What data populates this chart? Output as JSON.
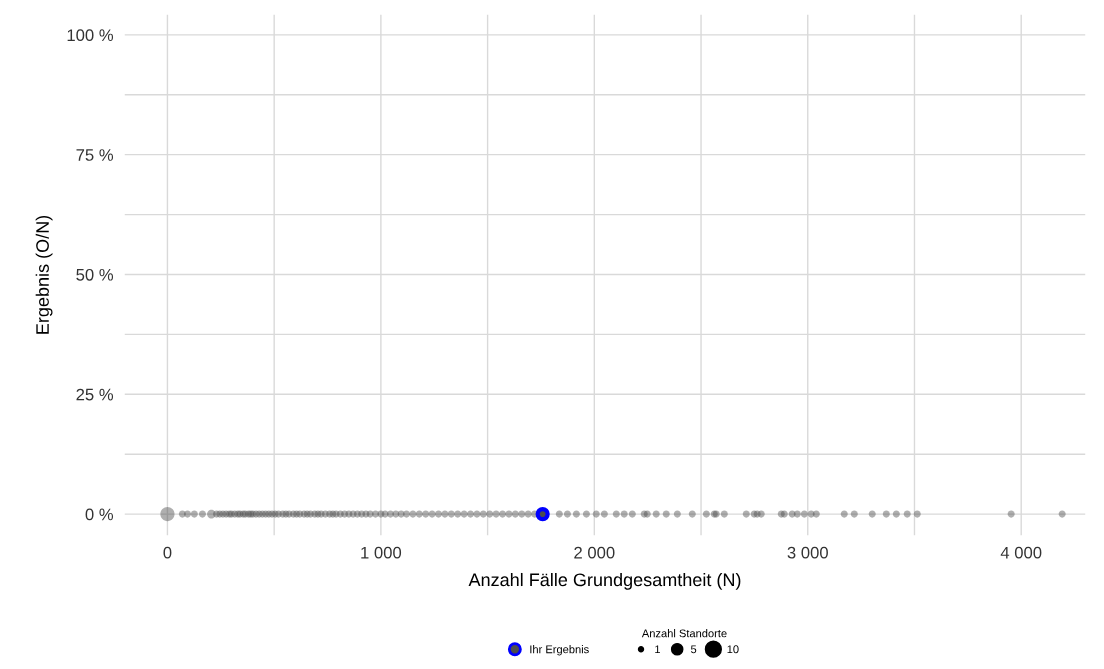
{
  "chart_data": {
    "type": "bubble",
    "xlabel": "Anzahl Fälle Grundgesamtheit (N)",
    "ylabel": "Ergebnis (O/N)",
    "legend_title": "Anzahl Standorte",
    "xlim": [
      -200,
      4300
    ],
    "ylim": [
      -4.4,
      104.2
    ],
    "xticks": [
      {
        "value": 0,
        "label": "0"
      },
      {
        "value": 500,
        "label": null
      },
      {
        "value": 1000,
        "label": "1 000"
      },
      {
        "value": 1500,
        "label": null
      },
      {
        "value": 2000,
        "label": "2 000"
      },
      {
        "value": 2500,
        "label": null
      },
      {
        "value": 3000,
        "label": "3 000"
      },
      {
        "value": 3500,
        "label": null
      },
      {
        "value": 4000,
        "label": "4 000"
      }
    ],
    "yticks": [
      {
        "value": 0,
        "label": "0 %"
      },
      {
        "value": 12.5,
        "label": null
      },
      {
        "value": 25,
        "label": "25 %"
      },
      {
        "value": 37.5,
        "label": null
      },
      {
        "value": 50,
        "label": "50 %"
      },
      {
        "value": 62.5,
        "label": null
      },
      {
        "value": 75,
        "label": "75 %"
      },
      {
        "value": 87.5,
        "label": null
      },
      {
        "value": 100,
        "label": "100 %"
      }
    ],
    "grid": true,
    "legend": "bottom",
    "size_legend": [
      1,
      5,
      10
    ],
    "series": [
      {
        "color": "#4d4d4d",
        "x": [
          0,
          70,
          94,
          126,
          164,
          206,
          230,
          245,
          260,
          275,
          290,
          300,
          315,
          330,
          340,
          355,
          365,
          380,
          390,
          400,
          415,
          430,
          445,
          460,
          475,
          490,
          505,
          520,
          540,
          555,
          570,
          590,
          605,
          620,
          640,
          655,
          670,
          690,
          705,
          720,
          740,
          760,
          775,
          790,
          810,
          830,
          850,
          870,
          890,
          910,
          930,
          950,
          975,
          1000,
          1020,
          1045,
          1070,
          1095,
          1120,
          1150,
          1180,
          1210,
          1240,
          1270,
          1300,
          1330,
          1360,
          1390,
          1420,
          1450,
          1480,
          1510,
          1540,
          1570,
          1600,
          1630,
          1660,
          1690,
          1720,
          1836,
          1874,
          1916,
          1963,
          2009,
          2047,
          2103,
          2140,
          2178,
          2234,
          2248,
          2290,
          2337,
          2389,
          2459,
          2525,
          2562,
          2571,
          2609,
          2712,
          2749,
          2763,
          2782,
          2876,
          2890,
          2927,
          2951,
          2984,
          3016,
          3040,
          3171,
          3218,
          3302,
          3368,
          3415,
          3466,
          3513,
          3953,
          4192
        ],
        "values": [
          0,
          0,
          0,
          0,
          0,
          0,
          0,
          0,
          0,
          0,
          0,
          0,
          0,
          0,
          0,
          0,
          0,
          0,
          0,
          0,
          0,
          0,
          0,
          0,
          0,
          0,
          0,
          0,
          0,
          0,
          0,
          0,
          0,
          0,
          0,
          0,
          0,
          0,
          0,
          0,
          0,
          0,
          0,
          0,
          0,
          0,
          0,
          0,
          0,
          0,
          0,
          0,
          0,
          0,
          0,
          0,
          0,
          0,
          0,
          0,
          0,
          0,
          0,
          0,
          0,
          0,
          0,
          0,
          0,
          0,
          0,
          0,
          0,
          0,
          0,
          0,
          0,
          0,
          0,
          0,
          0,
          0,
          0,
          0,
          0,
          0,
          0,
          0,
          0,
          0,
          0,
          0,
          0,
          0,
          0,
          0,
          0,
          0,
          0,
          0,
          0,
          0,
          0,
          0,
          0,
          0,
          0,
          0,
          0,
          0,
          0,
          0,
          0,
          0,
          0,
          0,
          0,
          0
        ],
        "sizes": [
          8,
          2,
          2,
          2,
          2,
          3,
          2,
          2,
          2,
          2,
          2,
          2,
          2,
          2,
          2,
          2,
          2,
          2,
          2,
          2,
          2,
          2,
          2,
          2,
          2,
          2,
          2,
          2,
          2,
          2,
          2,
          2,
          2,
          2,
          2,
          2,
          2,
          2,
          2,
          2,
          2,
          2,
          2,
          2,
          2,
          2,
          2,
          2,
          2,
          2,
          2,
          2,
          2,
          2,
          2,
          2,
          2,
          2,
          2,
          2,
          2,
          2,
          2,
          2,
          2,
          2,
          2,
          2,
          2,
          2,
          2,
          2,
          2,
          2,
          2,
          2,
          2,
          2,
          2,
          2,
          2,
          2,
          2,
          2,
          2,
          2,
          2,
          2,
          2,
          2,
          2,
          2,
          2,
          2,
          2,
          2,
          2,
          2,
          2,
          2,
          2,
          2,
          2,
          2,
          2,
          2,
          2,
          2,
          2,
          2,
          2,
          2,
          2,
          2,
          2,
          2,
          2,
          2
        ]
      },
      {
        "name": "Ihr Ergebnis",
        "color": "#0000ff",
        "x": [
          1758
        ],
        "values": [
          0
        ],
        "sizes": [
          4
        ]
      }
    ]
  }
}
